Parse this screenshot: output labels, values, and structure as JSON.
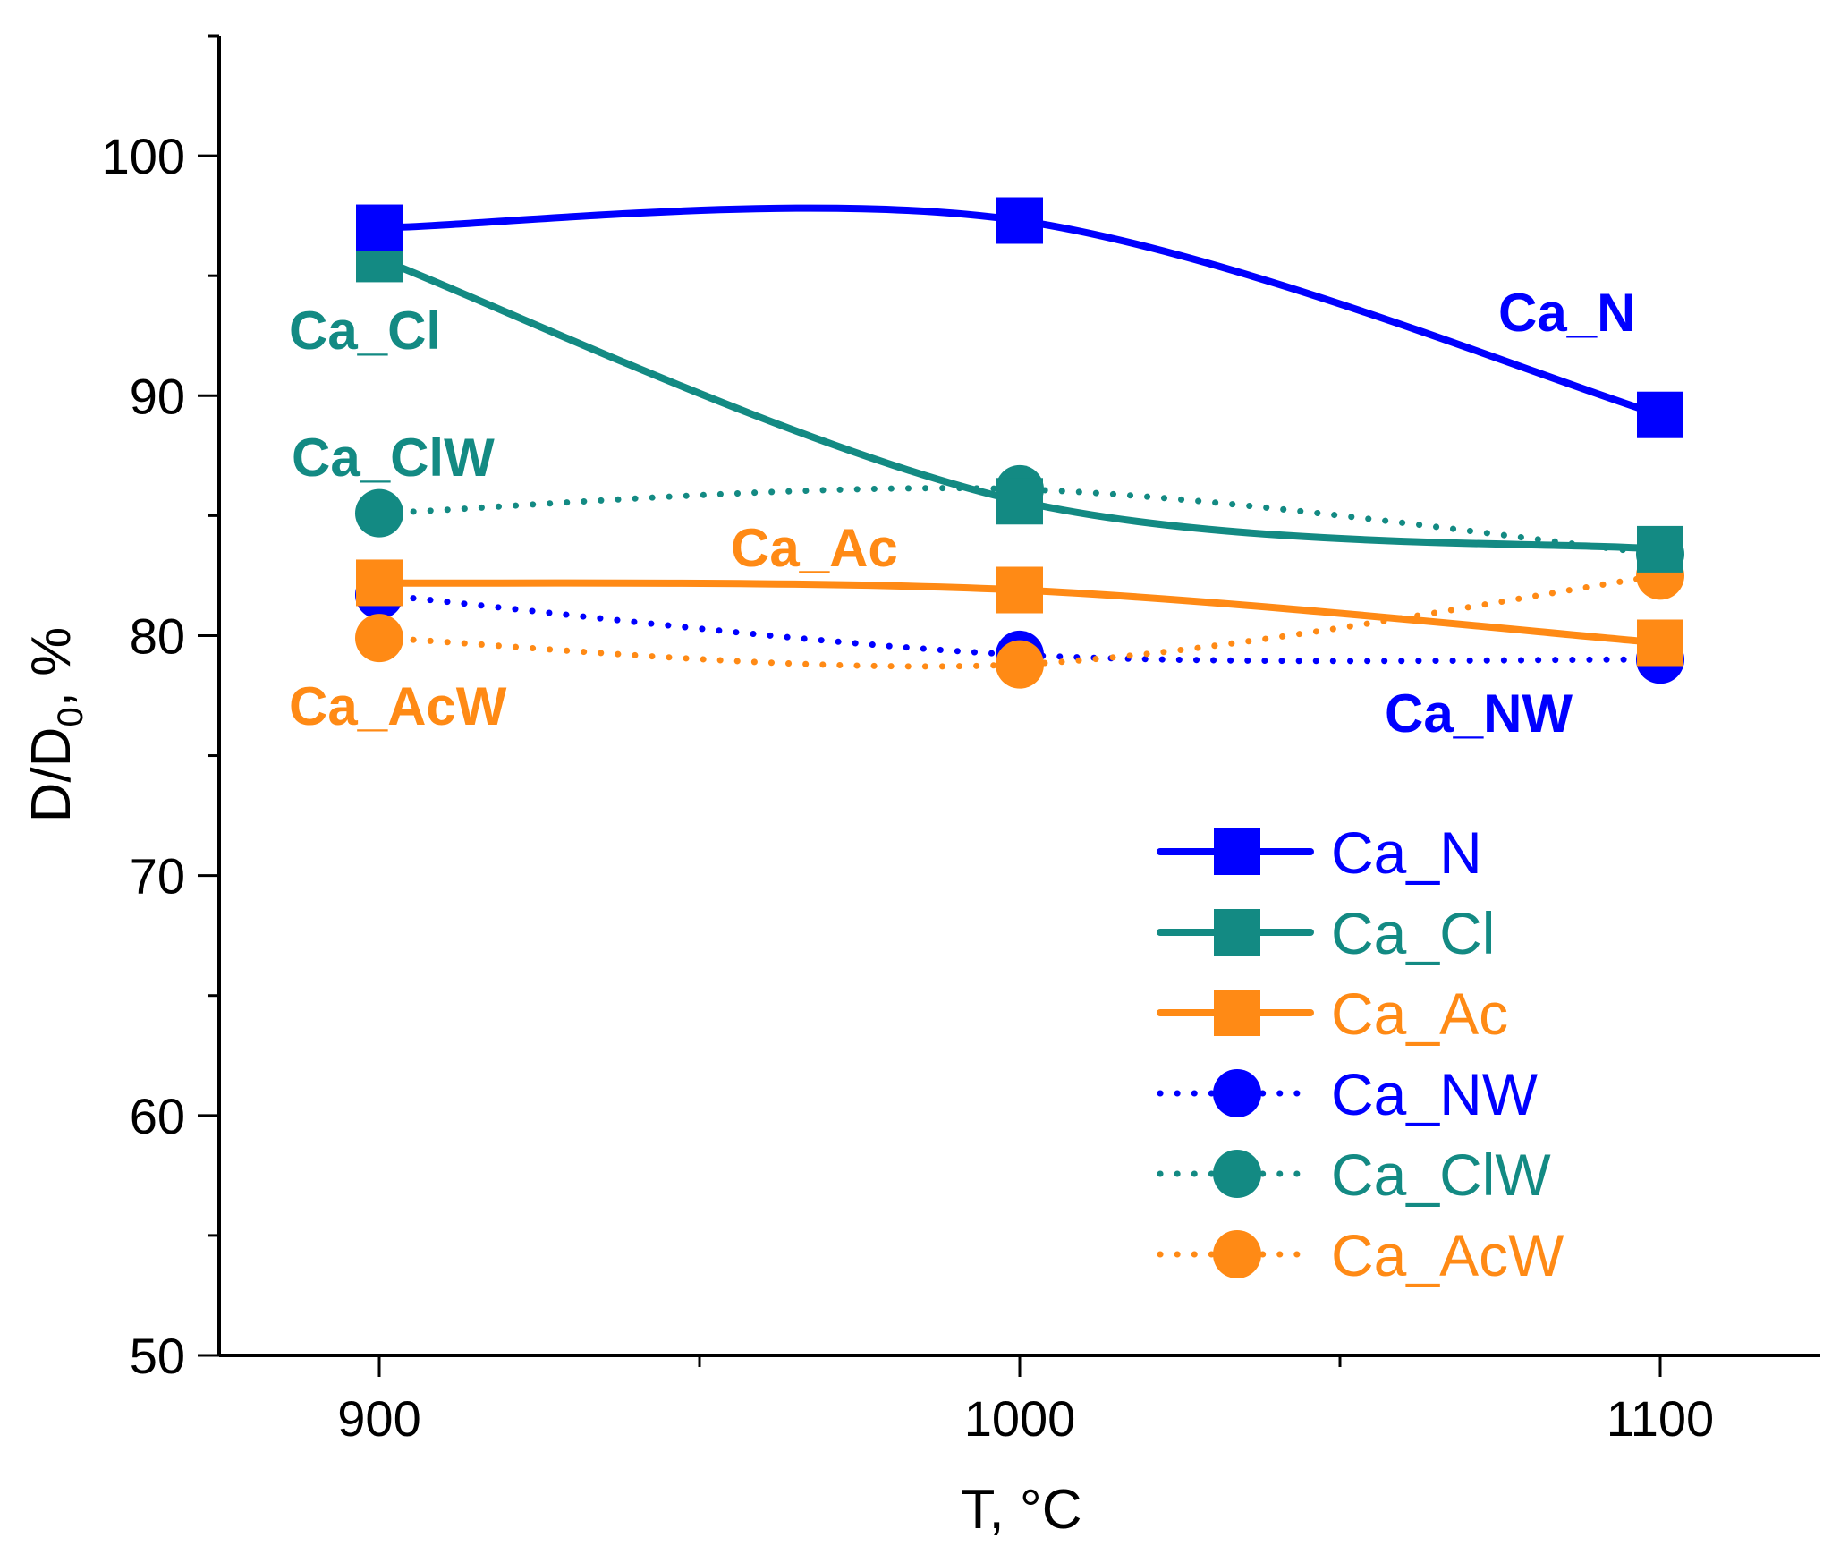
{
  "chart_data": {
    "type": "line",
    "title": "",
    "xlabel": "T, °C",
    "ylabel_main": "D/D",
    "ylabel_sub": "0",
    "ylabel_tail": ", %",
    "x": [
      900,
      1000,
      1100
    ],
    "xlim": [
      875,
      1125
    ],
    "ylim": [
      50,
      105
    ],
    "x_ticks": [
      "900",
      "1000",
      "1100"
    ],
    "y_ticks": [
      "50",
      "60",
      "70",
      "80",
      "90",
      "100"
    ],
    "legend_position": "bottom-right",
    "grid": false,
    "series": [
      {
        "name": "Ca_N",
        "values": [
          97.0,
          97.3,
          89.2
        ],
        "color": "#0000ff",
        "marker": "square",
        "line": "solid"
      },
      {
        "name": "Ca_Cl",
        "values": [
          95.7,
          85.6,
          83.6
        ],
        "color": "#138a83",
        "marker": "square",
        "line": "solid"
      },
      {
        "name": "Ca_Ac",
        "values": [
          82.2,
          81.9,
          79.7
        ],
        "color": "#ff8a15",
        "marker": "square",
        "line": "solid"
      },
      {
        "name": "Ca_NW",
        "values": [
          81.7,
          79.2,
          79.0
        ],
        "color": "#0000ff",
        "marker": "circle",
        "line": "dotted"
      },
      {
        "name": "Ca_ClW",
        "values": [
          85.1,
          86.1,
          83.4
        ],
        "color": "#138a83",
        "marker": "circle",
        "line": "dotted"
      },
      {
        "name": "Ca_AcW",
        "values": [
          79.9,
          78.8,
          82.5
        ],
        "color": "#ff8a15",
        "marker": "circle",
        "line": "dotted"
      }
    ],
    "annotations": [
      {
        "text": "Ca_Cl",
        "color": "#138a83"
      },
      {
        "text": "Ca_ClW",
        "color": "#138a83"
      },
      {
        "text": "Ca_Ac",
        "color": "#ff8a15"
      },
      {
        "text": "Ca_AcW",
        "color": "#ff8a15"
      },
      {
        "text": "Ca_N",
        "color": "#0000ff"
      },
      {
        "text": "Ca_NW",
        "color": "#0000ff"
      }
    ]
  }
}
